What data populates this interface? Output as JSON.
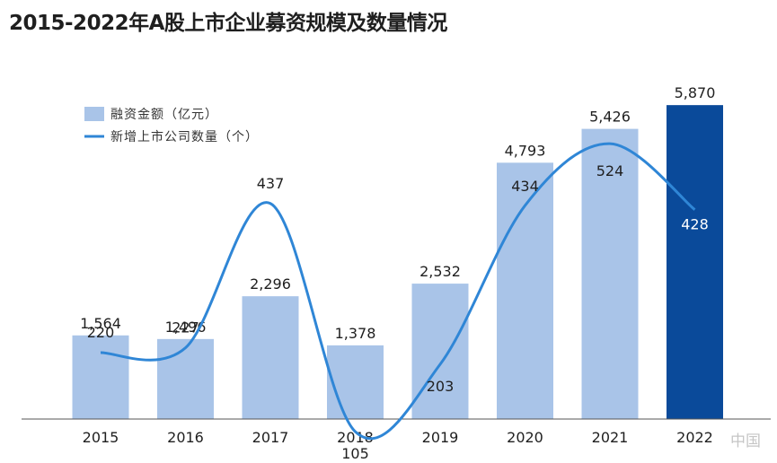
{
  "title": "2015-2022年A股上市企业募资规模及数量情况",
  "watermark": "中国",
  "chart_data": {
    "type": "bar",
    "categories": [
      "2015",
      "2016",
      "2017",
      "2018",
      "2019",
      "2020",
      "2021",
      "2022"
    ],
    "series": [
      {
        "name": "融资金额（亿元）",
        "type": "bar",
        "values": [
          1564,
          1496,
          2296,
          1378,
          2532,
          4793,
          5426,
          5870
        ],
        "value_labels": [
          "1,564",
          "1,496",
          "2,296",
          "1,378",
          "2,532",
          "4,793",
          "5,426",
          "5,870"
        ],
        "color": "#a9c4e8",
        "highlight_color": "#0a4a9a",
        "highlight_index": 7
      },
      {
        "name": "新增上市公司数量（个）",
        "type": "line",
        "values": [
          220,
          227,
          437,
          105,
          203,
          434,
          524,
          428
        ],
        "value_labels": [
          "220",
          "227",
          "437",
          "105",
          "203",
          "434",
          "524",
          "428"
        ],
        "color": "#2f86d6"
      }
    ],
    "legend_position": "top-left",
    "grid": false
  }
}
